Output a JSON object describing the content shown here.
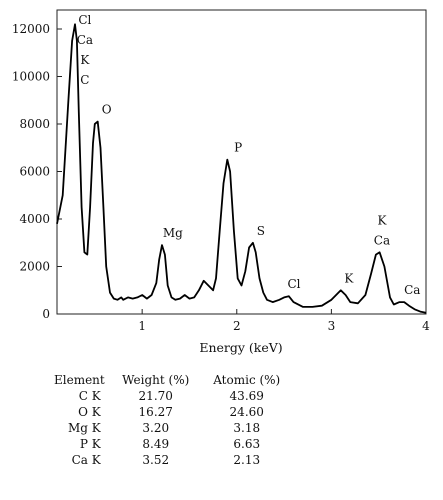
{
  "chart_data": {
    "type": "line",
    "xlabel": "Energy (keV)",
    "ylabel": "",
    "xlim": [
      0.1,
      4.0
    ],
    "ylim": [
      0,
      12800
    ],
    "xticks": [
      1,
      2,
      3,
      4
    ],
    "yticks": [
      0,
      2000,
      4000,
      6000,
      8000,
      10000,
      12000
    ],
    "xtick_labels": [
      "1",
      "2",
      "3",
      "4"
    ],
    "ytick_labels": [
      "0",
      "2000",
      "4000",
      "6000",
      "8000",
      "10000",
      "12000"
    ],
    "grid": false,
    "series": [
      {
        "x": [
          0.1,
          0.16,
          0.22,
          0.26,
          0.29,
          0.31,
          0.33,
          0.36,
          0.39,
          0.42,
          0.45,
          0.48,
          0.5,
          0.53,
          0.56,
          0.59,
          0.62,
          0.66,
          0.7,
          0.74,
          0.78,
          0.8,
          0.85,
          0.9,
          0.95,
          1.0,
          1.05,
          1.1,
          1.15,
          1.18,
          1.21,
          1.24,
          1.27,
          1.31,
          1.35,
          1.4,
          1.45,
          1.5,
          1.55,
          1.6,
          1.65,
          1.7,
          1.75,
          1.78,
          1.82,
          1.86,
          1.9,
          1.93,
          1.97,
          2.01,
          2.05,
          2.09,
          2.13,
          2.17,
          2.2,
          2.24,
          2.28,
          2.32,
          2.38,
          2.45,
          2.5,
          2.55,
          2.6,
          2.7,
          2.8,
          2.9,
          3.0,
          3.05,
          3.1,
          3.15,
          3.2,
          3.28,
          3.36,
          3.42,
          3.47,
          3.51,
          3.56,
          3.62,
          3.66,
          3.72,
          3.77,
          3.82,
          3.88,
          3.94,
          4.0
        ],
        "y": [
          3800,
          5000,
          9000,
          11500,
          12200,
          11500,
          8500,
          4500,
          2600,
          2500,
          4500,
          7200,
          8000,
          8100,
          7000,
          4500,
          2000,
          900,
          650,
          600,
          700,
          600,
          700,
          650,
          700,
          800,
          650,
          800,
          1300,
          2300,
          2900,
          2500,
          1200,
          700,
          600,
          650,
          800,
          650,
          700,
          1000,
          1400,
          1200,
          1000,
          1500,
          3500,
          5500,
          6500,
          6000,
          3500,
          1500,
          1200,
          1800,
          2800,
          3000,
          2600,
          1500,
          900,
          600,
          500,
          600,
          700,
          750,
          500,
          300,
          300,
          350,
          600,
          800,
          1000,
          800,
          500,
          450,
          800,
          1700,
          2500,
          2600,
          2000,
          700,
          400,
          500,
          500,
          350,
          200,
          100,
          50
        ]
      }
    ],
    "annotations": [
      {
        "lines": [
          "Cl",
          "Ca",
          "K",
          "C"
        ],
        "x": 0.31,
        "y": 12200
      },
      {
        "lines": [
          "O"
        ],
        "x": 0.54,
        "y": 8100
      },
      {
        "lines": [
          "Mg"
        ],
        "x": 1.24,
        "y": 2900
      },
      {
        "lines": [
          "P"
        ],
        "x": 1.93,
        "y": 6500
      },
      {
        "lines": [
          "S"
        ],
        "x": 2.17,
        "y": 3000
      },
      {
        "lines": [
          "Cl"
        ],
        "x": 2.52,
        "y": 750
      },
      {
        "lines": [
          "K"
        ],
        "x": 3.1,
        "y": 1000
      },
      {
        "lines": [
          "K",
          "Ca"
        ],
        "x": 3.45,
        "y": 2600
      },
      {
        "lines": [
          "Ca"
        ],
        "x": 3.77,
        "y": 500
      }
    ]
  },
  "table": {
    "headers": [
      "Element",
      "Weight (%)",
      "Atomic (%)"
    ],
    "rows": [
      [
        "C K",
        "21.70",
        "43.69"
      ],
      [
        "O K",
        "16.27",
        "24.60"
      ],
      [
        "Mg K",
        "3.20",
        "3.18"
      ],
      [
        "P K",
        "8.49",
        "6.63"
      ],
      [
        "Ca K",
        "3.52",
        "2.13"
      ]
    ]
  }
}
